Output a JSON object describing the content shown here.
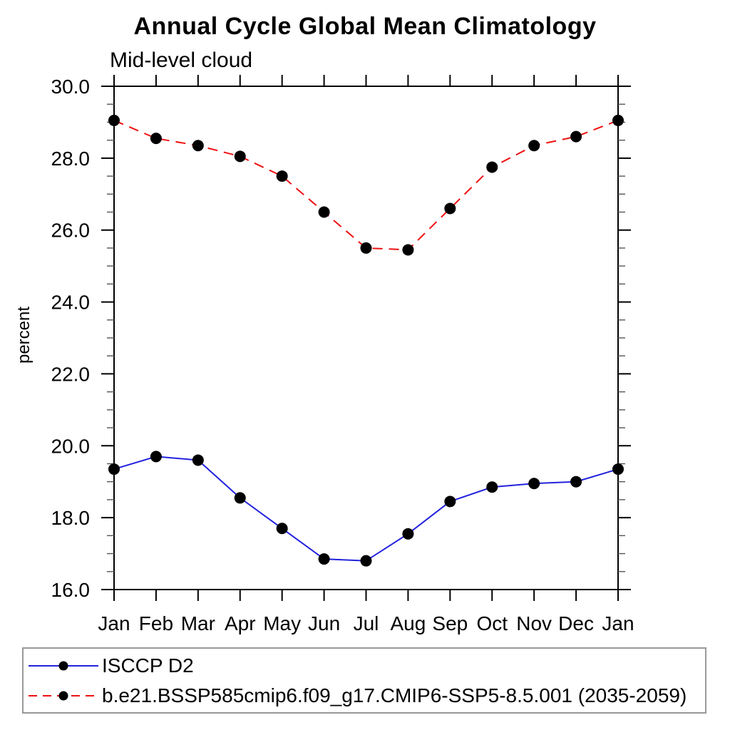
{
  "page": {
    "background": "#ffffff",
    "axis_color": "#000000",
    "minor_tick_color": "#555555",
    "legend_border_color": "#999999"
  },
  "chart_data": {
    "type": "line",
    "title": "Annual Cycle Global Mean Climatology",
    "subtitle": "Mid-level cloud",
    "ylabel": "percent",
    "x_categories": [
      "Jan",
      "Feb",
      "Mar",
      "Apr",
      "May",
      "Jun",
      "Jul",
      "Aug",
      "Sep",
      "Oct",
      "Nov",
      "Dec",
      "Jan"
    ],
    "ylim": [
      16.0,
      30.0
    ],
    "ytick_major_interval": 2.0,
    "ytick_minor_interval": 0.5,
    "ytick_major_labels": [
      "16.0",
      "18.0",
      "20.0",
      "22.0",
      "24.0",
      "26.0",
      "28.0",
      "30.0"
    ],
    "grid": false,
    "legend_position": "bottom-left",
    "series": [
      {
        "name": "ISCCP D2",
        "color": "#2222dd",
        "line_style": "solid",
        "marker": "filled-circle",
        "marker_color": "#000000",
        "values": [
          19.35,
          19.7,
          19.6,
          18.55,
          17.7,
          16.85,
          16.8,
          17.55,
          18.45,
          18.85,
          18.95,
          19.0,
          19.35
        ]
      },
      {
        "name": "b.e21.BSSP585cmip6.f09_g17.CMIP6-SSP5-8.5.001 (2035-2059)",
        "color": "#ee1111",
        "line_style": "dashed",
        "marker": "filled-circle",
        "marker_color": "#000000",
        "values": [
          29.05,
          28.55,
          28.35,
          28.05,
          27.5,
          26.5,
          25.5,
          25.45,
          26.6,
          27.75,
          28.35,
          28.6,
          29.05
        ]
      }
    ]
  }
}
